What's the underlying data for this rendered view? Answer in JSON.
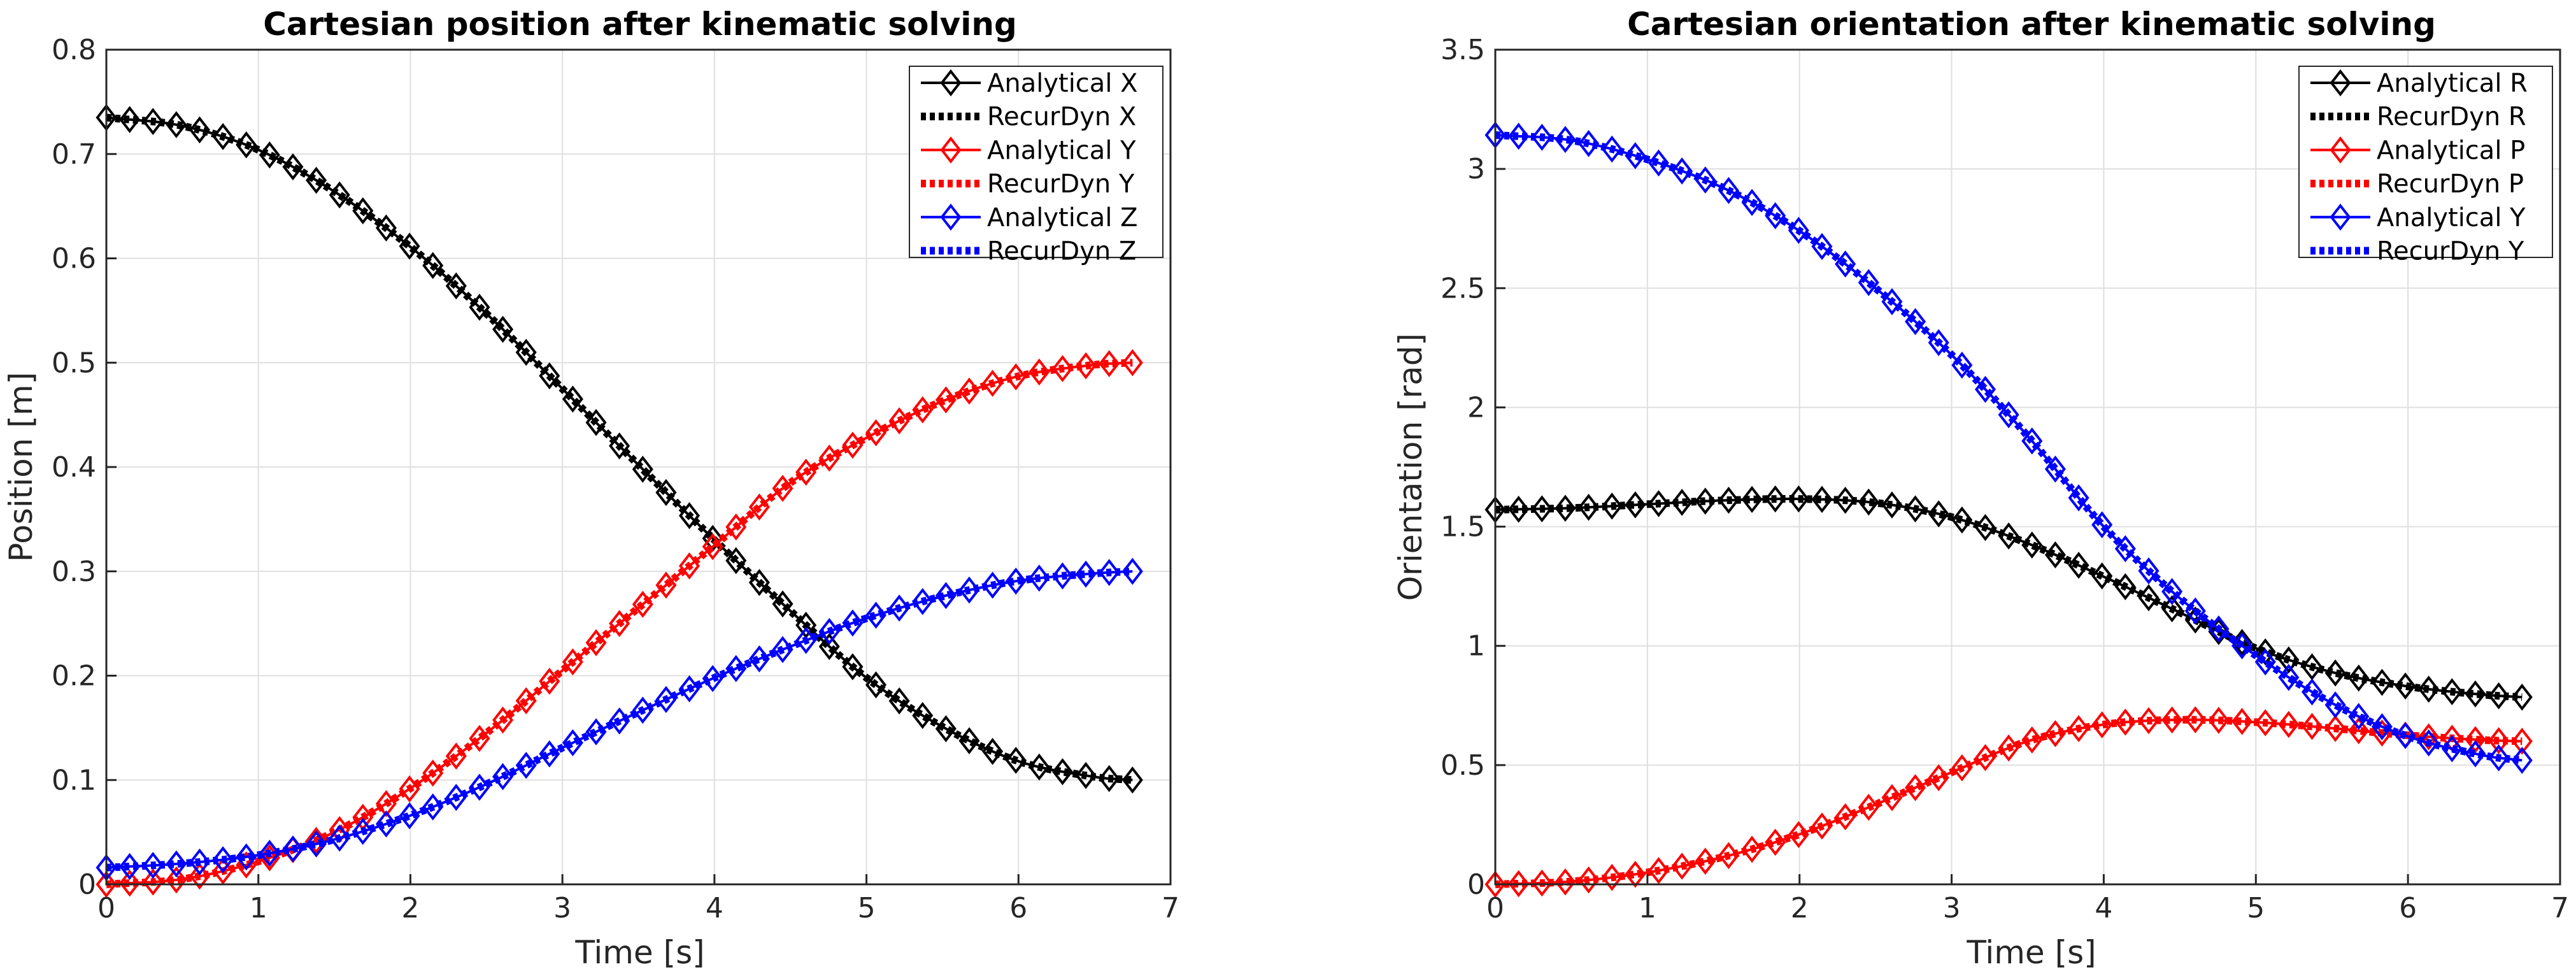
{
  "chart_data": [
    {
      "type": "line",
      "title": "Cartesian position after kinematic solving",
      "xlabel": "Time [s]",
      "ylabel": "Position [m]",
      "xlim": [
        0,
        7
      ],
      "ylim": [
        0,
        0.8
      ],
      "xticks": [
        "0",
        "1",
        "2",
        "3",
        "4",
        "5",
        "6",
        "7"
      ],
      "yticks": [
        "0",
        "0.1",
        "0.2",
        "0.3",
        "0.4",
        "0.5",
        "0.6",
        "0.7",
        "0.8"
      ],
      "grid": true,
      "legend_position": "top-right",
      "x": [
        0,
        0.5,
        1,
        1.5,
        2,
        2.5,
        3,
        3.5,
        4,
        4.5,
        5,
        5.5,
        6,
        6.5,
        6.75
      ],
      "series": [
        {
          "name": "Analytical X",
          "style": "solid-diamond",
          "color": "#000000",
          "values": [
            0.735,
            0.727,
            0.704,
            0.664,
            0.611,
            0.547,
            0.475,
            0.402,
            0.33,
            0.262,
            0.198,
            0.151,
            0.118,
            0.103,
            0.1
          ]
        },
        {
          "name": "RecurDyn X",
          "style": "dotted",
          "color": "#000000",
          "values": [
            0.735,
            0.727,
            0.704,
            0.664,
            0.611,
            0.547,
            0.475,
            0.402,
            0.33,
            0.262,
            0.198,
            0.151,
            0.118,
            0.103,
            0.1
          ]
        },
        {
          "name": "Analytical Y",
          "style": "solid-diamond",
          "color": "#ff0000",
          "values": [
            0.0,
            0.005,
            0.022,
            0.05,
            0.092,
            0.145,
            0.205,
            0.265,
            0.325,
            0.385,
            0.428,
            0.463,
            0.487,
            0.498,
            0.5
          ]
        },
        {
          "name": "RecurDyn Y",
          "style": "dotted",
          "color": "#ff0000",
          "values": [
            0.0,
            0.005,
            0.022,
            0.05,
            0.092,
            0.145,
            0.205,
            0.265,
            0.325,
            0.385,
            0.428,
            0.463,
            0.487,
            0.498,
            0.5
          ]
        },
        {
          "name": "Analytical Z",
          "style": "solid-diamond",
          "color": "#0000ff",
          "values": [
            0.016,
            0.02,
            0.028,
            0.043,
            0.066,
            0.096,
            0.131,
            0.165,
            0.198,
            0.228,
            0.255,
            0.276,
            0.291,
            0.298,
            0.3
          ]
        },
        {
          "name": "RecurDyn Z",
          "style": "dotted",
          "color": "#0000ff",
          "values": [
            0.016,
            0.02,
            0.028,
            0.043,
            0.066,
            0.096,
            0.131,
            0.165,
            0.198,
            0.228,
            0.255,
            0.276,
            0.291,
            0.298,
            0.3
          ]
        }
      ]
    },
    {
      "type": "line",
      "title": "Cartesian orientation after kinematic solving",
      "xlabel": "Time [s]",
      "ylabel": "Orientation [rad]",
      "xlim": [
        0,
        7
      ],
      "ylim": [
        0,
        3.5
      ],
      "xticks": [
        "0",
        "1",
        "2",
        "3",
        "4",
        "5",
        "6",
        "7"
      ],
      "yticks": [
        "0",
        "0.5",
        "1",
        "1.5",
        "2",
        "2.5",
        "3",
        "3.5"
      ],
      "grid": true,
      "legend_position": "top-right",
      "x": [
        0,
        0.5,
        1,
        1.5,
        2,
        2.5,
        3,
        3.5,
        4,
        4.5,
        5,
        5.5,
        6,
        6.5,
        6.75
      ],
      "series": [
        {
          "name": "Analytical R",
          "style": "solid-diamond",
          "color": "#000000",
          "values": [
            1.571,
            1.578,
            1.594,
            1.61,
            1.616,
            1.6,
            1.54,
            1.43,
            1.29,
            1.14,
            0.99,
            0.89,
            0.83,
            0.795,
            0.785
          ]
        },
        {
          "name": "RecurDyn R",
          "style": "dotted",
          "color": "#000000",
          "values": [
            1.571,
            1.578,
            1.594,
            1.61,
            1.616,
            1.6,
            1.54,
            1.43,
            1.29,
            1.14,
            0.99,
            0.89,
            0.83,
            0.795,
            0.785
          ]
        },
        {
          "name": "Analytical P",
          "style": "solid-diamond",
          "color": "#ff0000",
          "values": [
            0.0,
            0.012,
            0.05,
            0.115,
            0.21,
            0.335,
            0.47,
            0.6,
            0.67,
            0.69,
            0.68,
            0.655,
            0.625,
            0.605,
            0.6
          ]
        },
        {
          "name": "RecurDyn P",
          "style": "dotted",
          "color": "#ff0000",
          "values": [
            0.0,
            0.012,
            0.05,
            0.115,
            0.21,
            0.335,
            0.47,
            0.6,
            0.67,
            0.69,
            0.68,
            0.655,
            0.625,
            0.605,
            0.6
          ]
        },
        {
          "name": "Analytical Y",
          "style": "solid-diamond",
          "color": "#0000ff",
          "values": [
            3.142,
            3.12,
            3.04,
            2.92,
            2.74,
            2.5,
            2.22,
            1.88,
            1.5,
            1.2,
            0.96,
            0.76,
            0.62,
            0.54,
            0.52
          ]
        },
        {
          "name": "RecurDyn Y",
          "style": "dotted",
          "color": "#0000ff",
          "values": [
            3.142,
            3.12,
            3.04,
            2.92,
            2.74,
            2.5,
            2.22,
            1.88,
            1.5,
            1.2,
            0.96,
            0.76,
            0.62,
            0.54,
            0.52
          ]
        }
      ]
    }
  ]
}
